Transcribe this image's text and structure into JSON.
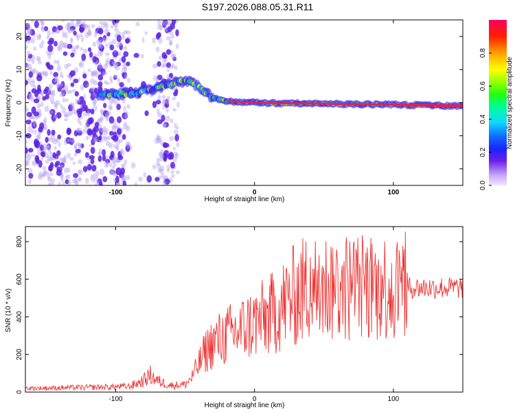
{
  "title": "S197.2026.088.05.31.R11",
  "colors": {
    "snr_line": "#ee3333",
    "frame": "#000000",
    "scatter_low": "#b8a4f0",
    "scatter_mid": "#5a22e0",
    "ridge_core": "#e8204a"
  },
  "chart_data": [
    {
      "type": "heatmap",
      "xlabel": "Height of straight line (km)",
      "ylabel": "Frequency (Hz)",
      "xlim": [
        -165,
        150
      ],
      "ylim": [
        -25,
        25
      ],
      "xticks": [
        -100,
        0,
        100
      ],
      "xtick_labels": [
        "-100",
        "0",
        "100"
      ],
      "yticks": [
        -20,
        -10,
        0,
        10,
        20
      ],
      "ytick_labels": [
        "-20",
        "-10",
        "0",
        "10",
        "20"
      ],
      "ridge": {
        "x": [
          -110,
          -100,
          -85,
          -70,
          -60,
          -52,
          -45,
          -38,
          -30,
          -20,
          -10,
          0,
          20,
          40,
          60,
          80,
          100,
          120,
          150
        ],
        "y": [
          2.5,
          2.5,
          3.0,
          4.5,
          5.5,
          6.5,
          6.0,
          4.0,
          1.5,
          0.5,
          0.2,
          0.0,
          -0.2,
          -0.2,
          -0.4,
          -0.5,
          -0.6,
          -0.8,
          -1.0
        ]
      },
      "colorbar": {
        "label": "Normalized spectral amplitude",
        "range": [
          0,
          1
        ],
        "ticks": [
          0.0,
          0.2,
          0.4,
          0.6,
          0.8
        ],
        "tick_labels": [
          "0.0",
          "0.2",
          "0.4",
          "0.6",
          "0.8"
        ]
      }
    },
    {
      "type": "line",
      "xlabel": "Height of straight line (km)",
      "ylabel": "SNR (10 * v/v)",
      "xlim": [
        -165,
        150
      ],
      "ylim": [
        0,
        880
      ],
      "xticks": [
        -100,
        0,
        100
      ],
      "xtick_labels": [
        "-100",
        "0",
        "100"
      ],
      "yticks": [
        0,
        200,
        400,
        600,
        800
      ],
      "ytick_labels": [
        "0",
        "200",
        "400",
        "600",
        "800"
      ],
      "envelope": {
        "x": [
          -165,
          -120,
          -90,
          -80,
          -75,
          -70,
          -60,
          -50,
          -45,
          -40,
          -35,
          -30,
          -20,
          -10,
          0,
          10,
          20,
          30,
          40,
          50,
          60,
          70,
          80,
          90,
          100,
          110,
          120,
          150
        ],
        "y": [
          20,
          25,
          30,
          60,
          90,
          60,
          35,
          40,
          80,
          150,
          220,
          260,
          300,
          330,
          370,
          400,
          460,
          520,
          560,
          560,
          560,
          560,
          560,
          560,
          560,
          555,
          555,
          555
        ]
      }
    }
  ]
}
